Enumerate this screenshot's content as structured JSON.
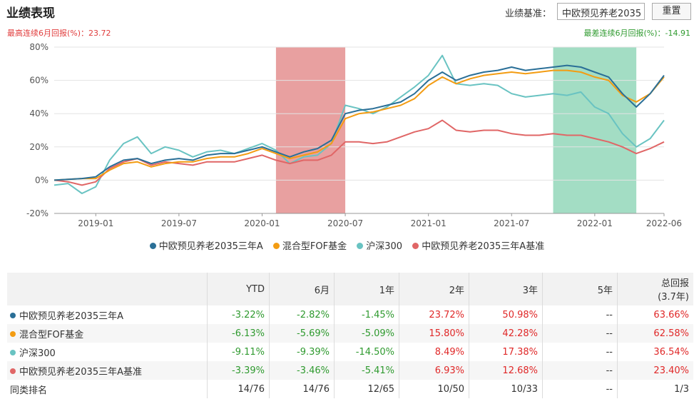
{
  "header": {
    "title": "业绩表现",
    "benchmark_label": "业绩基准：",
    "benchmark_value": "中欧预见养老2035",
    "reset_label": "重置"
  },
  "drawdown": {
    "max_text": "最高连续6月回报(%)：23.72",
    "min_text": "最差连续6月回报(%)：-14.91"
  },
  "colors": {
    "fund": "#2a6f97",
    "fof": "#f39c12",
    "hs300": "#69c3c2",
    "bench": "#e06666",
    "shade_high": "#e8a0a0",
    "shade_low": "#a3ddc4"
  },
  "chart_data": {
    "type": "line",
    "ylim": [
      -20,
      80
    ],
    "yticks": [
      -20,
      0,
      20,
      40,
      60,
      80
    ],
    "ytick_labels": [
      "-20%",
      "0%",
      "20%",
      "40%",
      "60%",
      "80%"
    ],
    "x_range": [
      "2018-10",
      "2022-06"
    ],
    "xtick_labels": [
      "2019-01",
      "2019-07",
      "2020-01",
      "2020-07",
      "2021-01",
      "2021-07",
      "2022-01",
      "2022-06"
    ],
    "xticks": [
      "2019-01",
      "2019-07",
      "2020-01",
      "2020-07",
      "2021-01",
      "2021-07",
      "2022-01",
      "2022-06"
    ],
    "shaded_periods": [
      {
        "type": "max",
        "from": "2020-02",
        "to": "2020-07"
      },
      {
        "type": "min",
        "from": "2021-10",
        "to": "2022-04"
      }
    ],
    "series": [
      {
        "name": "中欧预见养老2035三年A",
        "color_key": "fund",
        "points": [
          [
            "2018-10",
            0
          ],
          [
            "2018-12",
            1
          ],
          [
            "2019-01",
            2
          ],
          [
            "2019-02",
            8
          ],
          [
            "2019-03",
            12
          ],
          [
            "2019-04",
            13
          ],
          [
            "2019-05",
            10
          ],
          [
            "2019-06",
            12
          ],
          [
            "2019-07",
            13
          ],
          [
            "2019-08",
            12
          ],
          [
            "2019-09",
            15
          ],
          [
            "2019-10",
            16
          ],
          [
            "2019-11",
            16
          ],
          [
            "2019-12",
            18
          ],
          [
            "2020-01",
            20
          ],
          [
            "2020-02",
            17
          ],
          [
            "2020-03",
            14
          ],
          [
            "2020-04",
            17
          ],
          [
            "2020-05",
            19
          ],
          [
            "2020-06",
            24
          ],
          [
            "2020-07",
            40
          ],
          [
            "2020-08",
            42
          ],
          [
            "2020-09",
            43
          ],
          [
            "2020-10",
            45
          ],
          [
            "2020-11",
            47
          ],
          [
            "2020-12",
            52
          ],
          [
            "2021-01",
            60
          ],
          [
            "2021-02",
            65
          ],
          [
            "2021-03",
            60
          ],
          [
            "2021-04",
            63
          ],
          [
            "2021-05",
            65
          ],
          [
            "2021-06",
            66
          ],
          [
            "2021-07",
            68
          ],
          [
            "2021-08",
            66
          ],
          [
            "2021-09",
            67
          ],
          [
            "2021-10",
            68
          ],
          [
            "2021-11",
            69
          ],
          [
            "2021-12",
            68
          ],
          [
            "2022-01",
            65
          ],
          [
            "2022-02",
            62
          ],
          [
            "2022-03",
            52
          ],
          [
            "2022-04",
            44
          ],
          [
            "2022-05",
            52
          ],
          [
            "2022-06",
            63
          ]
        ]
      },
      {
        "name": "混合型FOF基金",
        "color_key": "fof",
        "points": [
          [
            "2018-10",
            0
          ],
          [
            "2018-12",
            1
          ],
          [
            "2019-01",
            1
          ],
          [
            "2019-02",
            6
          ],
          [
            "2019-03",
            10
          ],
          [
            "2019-04",
            11
          ],
          [
            "2019-05",
            8
          ],
          [
            "2019-06",
            10
          ],
          [
            "2019-07",
            11
          ],
          [
            "2019-08",
            11
          ],
          [
            "2019-09",
            13
          ],
          [
            "2019-10",
            14
          ],
          [
            "2019-11",
            14
          ],
          [
            "2019-12",
            16
          ],
          [
            "2020-01",
            19
          ],
          [
            "2020-02",
            16
          ],
          [
            "2020-03",
            13
          ],
          [
            "2020-04",
            15
          ],
          [
            "2020-05",
            17
          ],
          [
            "2020-06",
            22
          ],
          [
            "2020-07",
            37
          ],
          [
            "2020-08",
            40
          ],
          [
            "2020-09",
            41
          ],
          [
            "2020-10",
            43
          ],
          [
            "2020-11",
            45
          ],
          [
            "2020-12",
            49
          ],
          [
            "2021-01",
            57
          ],
          [
            "2021-02",
            62
          ],
          [
            "2021-03",
            58
          ],
          [
            "2021-04",
            61
          ],
          [
            "2021-05",
            63
          ],
          [
            "2021-06",
            64
          ],
          [
            "2021-07",
            65
          ],
          [
            "2021-08",
            64
          ],
          [
            "2021-09",
            65
          ],
          [
            "2021-10",
            66
          ],
          [
            "2021-11",
            66
          ],
          [
            "2021-12",
            65
          ],
          [
            "2022-01",
            62
          ],
          [
            "2022-02",
            60
          ],
          [
            "2022-03",
            51
          ],
          [
            "2022-04",
            47
          ],
          [
            "2022-05",
            52
          ],
          [
            "2022-06",
            62
          ]
        ]
      },
      {
        "name": "沪深300",
        "color_key": "hs300",
        "points": [
          [
            "2018-10",
            -3
          ],
          [
            "2018-11",
            -2
          ],
          [
            "2018-12",
            -8
          ],
          [
            "2019-01",
            -4
          ],
          [
            "2019-02",
            12
          ],
          [
            "2019-03",
            22
          ],
          [
            "2019-04",
            26
          ],
          [
            "2019-05",
            16
          ],
          [
            "2019-06",
            20
          ],
          [
            "2019-07",
            18
          ],
          [
            "2019-08",
            14
          ],
          [
            "2019-09",
            17
          ],
          [
            "2019-10",
            18
          ],
          [
            "2019-11",
            16
          ],
          [
            "2019-12",
            19
          ],
          [
            "2020-01",
            22
          ],
          [
            "2020-02",
            18
          ],
          [
            "2020-03",
            10
          ],
          [
            "2020-04",
            14
          ],
          [
            "2020-05",
            15
          ],
          [
            "2020-06",
            22
          ],
          [
            "2020-07",
            45
          ],
          [
            "2020-08",
            43
          ],
          [
            "2020-09",
            40
          ],
          [
            "2020-10",
            44
          ],
          [
            "2020-11",
            50
          ],
          [
            "2020-12",
            56
          ],
          [
            "2021-01",
            63
          ],
          [
            "2021-02",
            75
          ],
          [
            "2021-03",
            58
          ],
          [
            "2021-04",
            57
          ],
          [
            "2021-05",
            58
          ],
          [
            "2021-06",
            57
          ],
          [
            "2021-07",
            52
          ],
          [
            "2021-08",
            50
          ],
          [
            "2021-09",
            51
          ],
          [
            "2021-10",
            52
          ],
          [
            "2021-11",
            51
          ],
          [
            "2021-12",
            53
          ],
          [
            "2022-01",
            44
          ],
          [
            "2022-02",
            40
          ],
          [
            "2022-03",
            28
          ],
          [
            "2022-04",
            20
          ],
          [
            "2022-05",
            25
          ],
          [
            "2022-06",
            36
          ]
        ]
      },
      {
        "name": "中欧预见养老2035三年A基准",
        "color_key": "bench",
        "points": [
          [
            "2018-10",
            0
          ],
          [
            "2018-11",
            -1
          ],
          [
            "2018-12",
            -3
          ],
          [
            "2019-01",
            -1
          ],
          [
            "2019-02",
            7
          ],
          [
            "2019-03",
            11
          ],
          [
            "2019-04",
            13
          ],
          [
            "2019-05",
            9
          ],
          [
            "2019-06",
            11
          ],
          [
            "2019-07",
            10
          ],
          [
            "2019-08",
            9
          ],
          [
            "2019-09",
            11
          ],
          [
            "2019-10",
            11
          ],
          [
            "2019-11",
            11
          ],
          [
            "2019-12",
            13
          ],
          [
            "2020-01",
            15
          ],
          [
            "2020-02",
            12
          ],
          [
            "2020-03",
            10
          ],
          [
            "2020-04",
            12
          ],
          [
            "2020-05",
            12
          ],
          [
            "2020-06",
            15
          ],
          [
            "2020-07",
            23
          ],
          [
            "2020-08",
            23
          ],
          [
            "2020-09",
            22
          ],
          [
            "2020-10",
            23
          ],
          [
            "2020-11",
            26
          ],
          [
            "2020-12",
            29
          ],
          [
            "2021-01",
            31
          ],
          [
            "2021-02",
            36
          ],
          [
            "2021-03",
            30
          ],
          [
            "2021-04",
            29
          ],
          [
            "2021-05",
            30
          ],
          [
            "2021-06",
            30
          ],
          [
            "2021-07",
            28
          ],
          [
            "2021-08",
            27
          ],
          [
            "2021-09",
            27
          ],
          [
            "2021-10",
            28
          ],
          [
            "2021-11",
            27
          ],
          [
            "2021-12",
            27
          ],
          [
            "2022-01",
            25
          ],
          [
            "2022-02",
            23
          ],
          [
            "2022-03",
            20
          ],
          [
            "2022-04",
            16
          ],
          [
            "2022-05",
            19
          ],
          [
            "2022-06",
            23
          ]
        ]
      }
    ]
  },
  "legend": [
    {
      "label": "中欧预见养老2035三年A",
      "color_key": "fund"
    },
    {
      "label": "混合型FOF基金",
      "color_key": "fof"
    },
    {
      "label": "沪深300",
      "color_key": "hs300"
    },
    {
      "label": "中欧预见养老2035三年A基准",
      "color_key": "bench"
    }
  ],
  "table": {
    "headers": [
      "",
      "YTD",
      "6月",
      "1年",
      "2年",
      "3年",
      "5年",
      "总回报"
    ],
    "total_sub": "(3.7年)",
    "rows": [
      {
        "name": "中欧预见养老2035三年A",
        "color_key": "fund",
        "values": [
          "-3.22%",
          "-2.82%",
          "-1.45%",
          "23.72%",
          "50.98%",
          "--",
          "63.66%"
        ]
      },
      {
        "name": "混合型FOF基金",
        "color_key": "fof",
        "values": [
          "-6.13%",
          "-5.69%",
          "-5.09%",
          "15.80%",
          "42.28%",
          "--",
          "62.58%"
        ]
      },
      {
        "name": "沪深300",
        "color_key": "hs300",
        "values": [
          "-9.11%",
          "-9.39%",
          "-14.50%",
          "8.49%",
          "17.38%",
          "--",
          "36.54%"
        ]
      },
      {
        "name": "中欧预见养老2035三年A基准",
        "color_key": "bench",
        "values": [
          "-3.39%",
          "-3.46%",
          "-5.41%",
          "6.93%",
          "12.68%",
          "--",
          "23.40%"
        ]
      }
    ],
    "rank_label": "同类排名",
    "rank_values": [
      "14/76",
      "14/76",
      "12/65",
      "10/50",
      "10/33",
      "--",
      "1/3"
    ]
  }
}
